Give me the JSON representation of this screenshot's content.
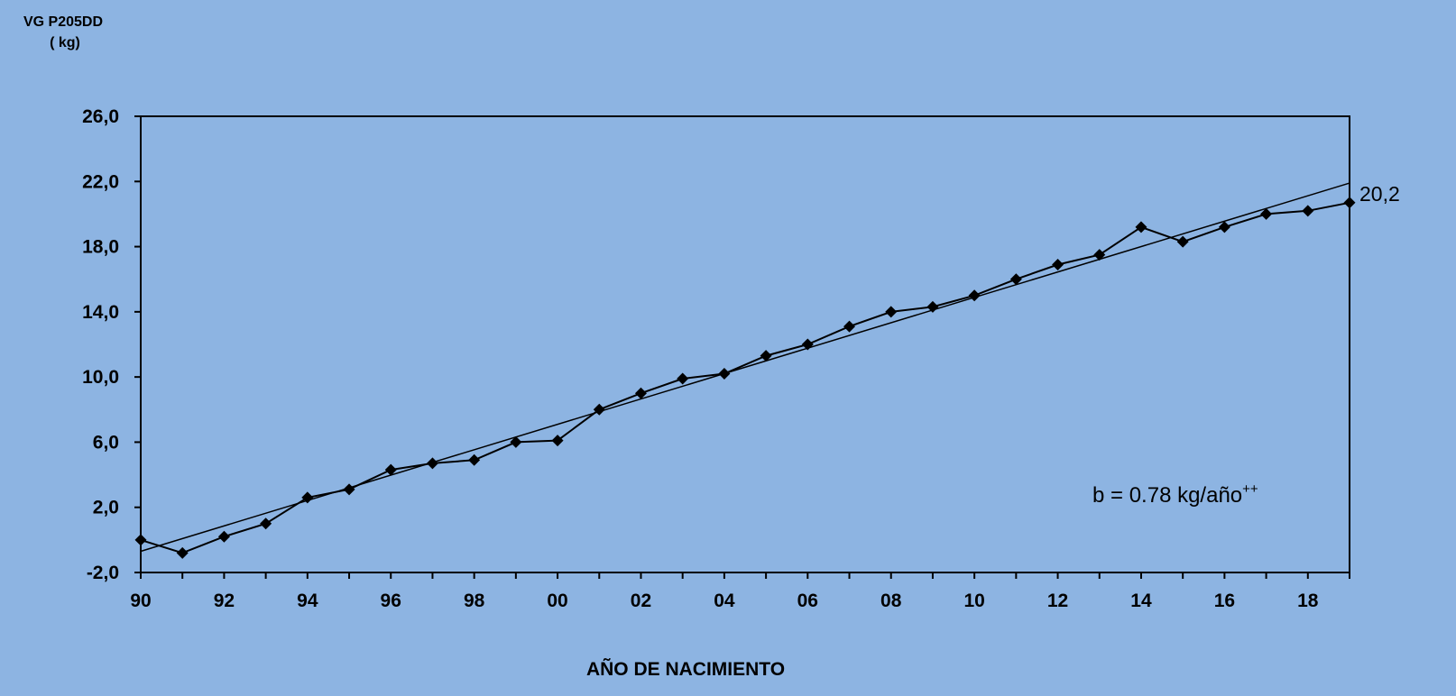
{
  "chart_data": {
    "type": "line",
    "ylabel": "VG P205DD",
    "ylabel_unit": "( kg)",
    "xlabel": "AÑO DE NACIMIENTO",
    "ylim": [
      -2.0,
      26.0
    ],
    "yticks": [
      "26,0",
      "22,0",
      "18,0",
      "14,0",
      "10,0",
      "6,0",
      "2,0",
      "-2,0"
    ],
    "ytick_values": [
      26,
      22,
      18,
      14,
      10,
      6,
      2,
      -2
    ],
    "xticks": [
      "90",
      "92",
      "94",
      "96",
      "98",
      "00",
      "02",
      "04",
      "06",
      "08",
      "10",
      "12",
      "14",
      "16",
      "18"
    ],
    "categories": [
      "90",
      "91",
      "92",
      "93",
      "94",
      "95",
      "96",
      "97",
      "98",
      "99",
      "00",
      "01",
      "02",
      "03",
      "04",
      "05",
      "06",
      "07",
      "08",
      "09",
      "10",
      "11",
      "12",
      "13",
      "14",
      "15",
      "16",
      "17",
      "18",
      "19"
    ],
    "series": [
      {
        "values": [
          0.0,
          -0.8,
          0.2,
          1.0,
          2.6,
          3.1,
          4.3,
          4.7,
          4.9,
          6.0,
          6.1,
          8.0,
          9.0,
          9.9,
          10.2,
          11.3,
          12.0,
          13.1,
          14.0,
          14.3,
          15.0,
          16.0,
          16.9,
          17.5,
          19.2,
          18.3,
          19.2,
          20.0,
          20.2,
          20.7
        ],
        "marker": "diamond",
        "color": "#000000"
      }
    ],
    "trendline": {
      "start": -0.7,
      "end": 21.9,
      "color": "#000000"
    },
    "annotation": "b = 0.78 kg/año",
    "annotation_sup": "++",
    "end_label": "20,2",
    "grid": false,
    "background": "#8db4e2"
  }
}
